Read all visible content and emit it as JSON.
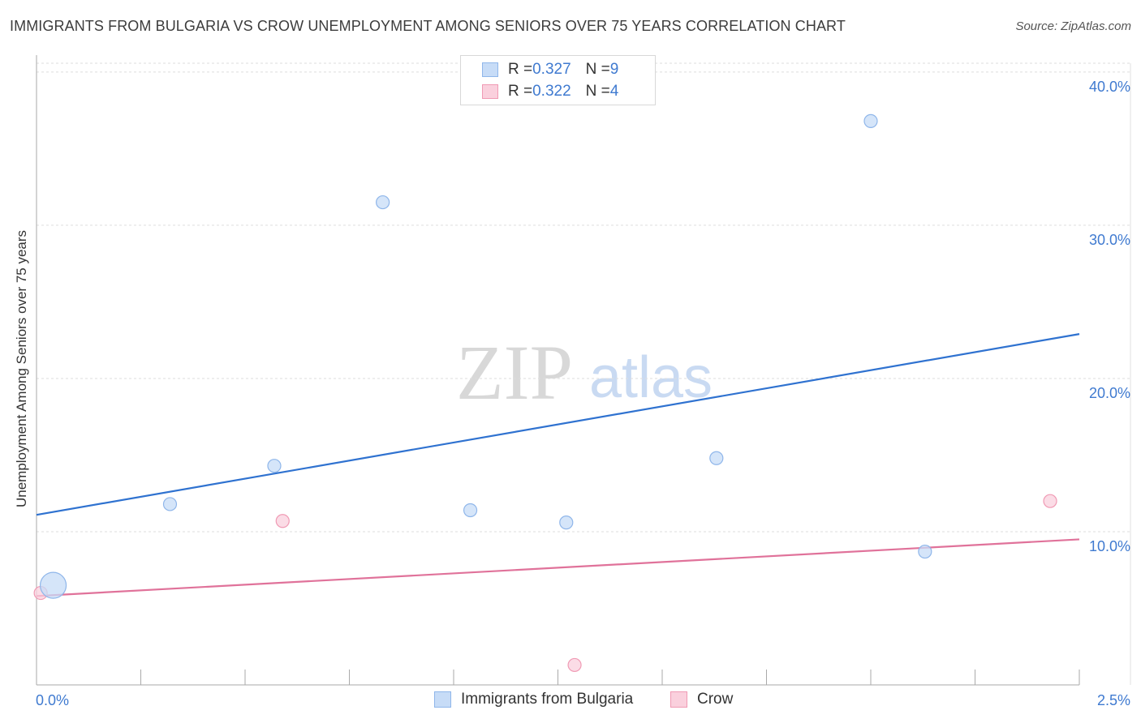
{
  "title": "IMMIGRANTS FROM BULGARIA VS CROW UNEMPLOYMENT AMONG SENIORS OVER 75 YEARS CORRELATION CHART",
  "source": "Source: ZipAtlas.com",
  "watermark": {
    "zip": "ZIP",
    "atlas": "atlas"
  },
  "legend": {
    "rows": [
      {
        "r_label": "R = ",
        "r_value": "0.327",
        "n_label": "N = ",
        "n_value": "9",
        "color": "#b9d3f5"
      },
      {
        "r_label": "R = ",
        "r_value": "0.322",
        "n_label": "N = ",
        "n_value": "4",
        "color": "#f8c4d4"
      }
    ]
  },
  "colors": {
    "blue_fill": "#c7dcf7",
    "blue_stroke": "#8fb6ea",
    "blue_line": "#2f72d0",
    "pink_fill": "#fad0dd",
    "pink_stroke": "#f09ab4",
    "pink_line": "#e0729a",
    "tick_text": "#3f7ad0",
    "grid": "#dddddd"
  },
  "chart_data": {
    "type": "scatter",
    "title": "IMMIGRANTS FROM BULGARIA VS CROW UNEMPLOYMENT AMONG SENIORS OVER 75 YEARS CORRELATION CHART",
    "xlabel": "",
    "ylabel": "Unemployment Among Seniors over 75 years",
    "xlim": [
      0,
      2.5
    ],
    "ylim": [
      0,
      41
    ],
    "x_tick_labels": [
      "0.0%",
      "2.5%"
    ],
    "y_ticks": [
      10,
      20,
      30,
      40
    ],
    "y_tick_labels": [
      "10.0%",
      "20.0%",
      "30.0%",
      "40.0%"
    ],
    "grid": true,
    "series": [
      {
        "name": "Immigrants from Bulgaria",
        "color": "#8fb6ea",
        "points": [
          {
            "x": 0.04,
            "y": 6.5,
            "size": "large"
          },
          {
            "x": 0.32,
            "y": 11.8
          },
          {
            "x": 0.57,
            "y": 14.3
          },
          {
            "x": 0.83,
            "y": 31.5
          },
          {
            "x": 1.04,
            "y": 11.4
          },
          {
            "x": 1.27,
            "y": 10.6
          },
          {
            "x": 1.63,
            "y": 14.8
          },
          {
            "x": 2.0,
            "y": 36.8
          },
          {
            "x": 2.13,
            "y": 8.7
          }
        ],
        "trendline": {
          "x": [
            0,
            2.5
          ],
          "y": [
            11.1,
            22.9
          ]
        }
      },
      {
        "name": "Crow",
        "color": "#f09ab4",
        "points": [
          {
            "x": 0.01,
            "y": 6.0
          },
          {
            "x": 0.59,
            "y": 10.7
          },
          {
            "x": 1.29,
            "y": 1.3
          },
          {
            "x": 2.43,
            "y": 12.0
          }
        ],
        "trendline": {
          "x": [
            0,
            2.5
          ],
          "y": [
            5.8,
            9.5
          ]
        }
      }
    ]
  }
}
